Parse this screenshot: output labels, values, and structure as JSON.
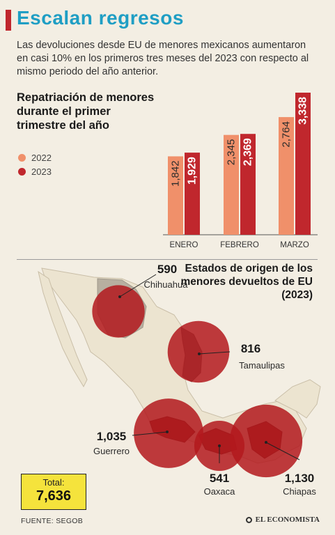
{
  "header": {
    "title": "Escalan regresos",
    "lead": "Las devoluciones desde EU de menores mexicanos aumentaron en casi 10% en los primeros tres meses del 2023 con respecto al mismo periodo del año anterior."
  },
  "colors": {
    "c2022": "#f0906a",
    "c2023": "#c0272d",
    "bubble": "#b3191d",
    "title": "#1f9ec4",
    "total_bg": "#f5e33c"
  },
  "chart_data": [
    {
      "type": "bar",
      "title": "Repatriación de menores durante el primer trimestre del año",
      "categories": [
        "ENERO",
        "FEBRERO",
        "MARZO"
      ],
      "series": [
        {
          "name": "2022",
          "values": [
            1842,
            2345,
            2764
          ],
          "labels": [
            "1,842",
            "2,345",
            "2,764"
          ]
        },
        {
          "name": "2023",
          "values": [
            1929,
            2369,
            3338
          ],
          "labels": [
            "1,929",
            "2,369",
            "3,338"
          ]
        }
      ],
      "ylim": [
        0,
        3338
      ],
      "legend": "top-left",
      "grid": false
    },
    {
      "type": "scatter",
      "title": "Estados de origen de los menores devueltos de EU (2023)",
      "points": [
        {
          "state": "Chihuahua",
          "value": 590,
          "label": "590"
        },
        {
          "state": "Tamaulipas",
          "value": 816,
          "label": "816"
        },
        {
          "state": "Guerrero",
          "value": 1035,
          "label": "1,035"
        },
        {
          "state": "Oaxaca",
          "value": 541,
          "label": "541"
        },
        {
          "state": "Chiapas",
          "value": 1130,
          "label": "1,130"
        }
      ]
    }
  ],
  "total": {
    "label": "Total:",
    "value": "7,636"
  },
  "footer": {
    "source": "FUENTE:  SEGOB",
    "brand": "EL ECONOMISTA"
  }
}
